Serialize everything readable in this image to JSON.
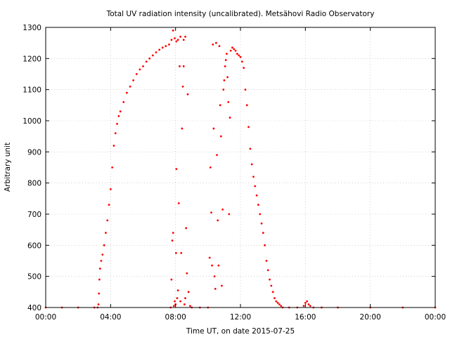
{
  "chart_data": {
    "type": "scatter",
    "title": "Total UV radiation intensity (uncalibrated). Metsähovi Radio Observatory",
    "xlabel": "Time UT, on date 2015-07-25",
    "ylabel": "Arbitrary unit",
    "xlim": [
      0,
      24
    ],
    "ylim": [
      400,
      1300
    ],
    "x_ticks": [
      0,
      4,
      8,
      12,
      16,
      20,
      24
    ],
    "x_tick_labels": [
      "00:00",
      "04:00",
      "08:00",
      "12:00",
      "16:00",
      "20:00",
      "00:00"
    ],
    "y_ticks": [
      400,
      500,
      600,
      700,
      800,
      900,
      1000,
      1100,
      1200,
      1300
    ],
    "y_tick_labels": [
      "400",
      "500",
      "600",
      "700",
      "800",
      "900",
      "1000",
      "1100",
      "1200",
      "1300"
    ],
    "grid": true,
    "marker_color": "#ff0000",
    "series": [
      {
        "points": [
          [
            0.0,
            400
          ],
          [
            1.0,
            400
          ],
          [
            2.0,
            400
          ],
          [
            3.0,
            400
          ],
          [
            3.2,
            400
          ],
          [
            3.25,
            410
          ],
          [
            3.28,
            445
          ],
          [
            3.31,
            490
          ],
          [
            3.35,
            525
          ],
          [
            3.42,
            550
          ],
          [
            3.5,
            570
          ],
          [
            3.6,
            600
          ],
          [
            3.7,
            640
          ],
          [
            3.8,
            680
          ],
          [
            3.9,
            730
          ],
          [
            4.0,
            780
          ],
          [
            4.1,
            850
          ],
          [
            4.2,
            920
          ],
          [
            4.3,
            960
          ],
          [
            4.4,
            990
          ],
          [
            4.5,
            1015
          ],
          [
            4.6,
            1030
          ],
          [
            4.8,
            1060
          ],
          [
            5.0,
            1090
          ],
          [
            5.2,
            1110
          ],
          [
            5.4,
            1130
          ],
          [
            5.6,
            1150
          ],
          [
            5.8,
            1165
          ],
          [
            6.0,
            1175
          ],
          [
            6.2,
            1190
          ],
          [
            6.4,
            1200
          ],
          [
            6.6,
            1210
          ],
          [
            6.8,
            1220
          ],
          [
            7.0,
            1228
          ],
          [
            7.2,
            1235
          ],
          [
            7.4,
            1240
          ],
          [
            7.6,
            1245
          ],
          [
            7.75,
            1260
          ],
          [
            7.85,
            1290
          ],
          [
            7.95,
            1265
          ],
          [
            8.05,
            1255
          ],
          [
            8.15,
            1260
          ],
          [
            8.3,
            1270
          ],
          [
            8.5,
            1260
          ],
          [
            8.6,
            1270
          ],
          [
            7.7,
            400
          ],
          [
            7.75,
            490
          ],
          [
            7.8,
            615
          ],
          [
            7.85,
            640
          ],
          [
            7.9,
            405
          ],
          [
            7.95,
            420
          ],
          [
            8.0,
            410
          ],
          [
            8.03,
            575
          ],
          [
            8.05,
            845
          ],
          [
            8.1,
            430
          ],
          [
            8.15,
            455
          ],
          [
            8.2,
            735
          ],
          [
            8.25,
            1175
          ],
          [
            8.3,
            420
          ],
          [
            8.35,
            575
          ],
          [
            8.4,
            975
          ],
          [
            8.45,
            1110
          ],
          [
            8.5,
            1175
          ],
          [
            8.55,
            410
          ],
          [
            8.6,
            430
          ],
          [
            8.65,
            655
          ],
          [
            8.7,
            510
          ],
          [
            8.75,
            1085
          ],
          [
            8.8,
            450
          ],
          [
            8.9,
            405
          ],
          [
            9.0,
            400
          ],
          [
            9.5,
            400
          ],
          [
            10.0,
            400
          ],
          [
            10.1,
            560
          ],
          [
            10.15,
            850
          ],
          [
            10.2,
            705
          ],
          [
            10.25,
            535
          ],
          [
            10.3,
            1245
          ],
          [
            10.35,
            975
          ],
          [
            10.4,
            500
          ],
          [
            10.45,
            460
          ],
          [
            10.5,
            1250
          ],
          [
            10.55,
            890
          ],
          [
            10.6,
            680
          ],
          [
            10.65,
            535
          ],
          [
            10.7,
            1240
          ],
          [
            10.75,
            1050
          ],
          [
            10.8,
            950
          ],
          [
            10.85,
            470
          ],
          [
            10.9,
            715
          ],
          [
            10.95,
            1100
          ],
          [
            11.0,
            1130
          ],
          [
            11.05,
            1175
          ],
          [
            11.1,
            1195
          ],
          [
            11.15,
            1215
          ],
          [
            11.2,
            1140
          ],
          [
            11.25,
            1060
          ],
          [
            11.3,
            700
          ],
          [
            11.35,
            1010
          ],
          [
            11.4,
            1225
          ],
          [
            11.5,
            1235
          ],
          [
            11.6,
            1230
          ],
          [
            11.7,
            1225
          ],
          [
            11.8,
            1215
          ],
          [
            11.9,
            1210
          ],
          [
            12.0,
            1205
          ],
          [
            12.1,
            1190
          ],
          [
            12.2,
            1170
          ],
          [
            12.3,
            1100
          ],
          [
            12.4,
            1050
          ],
          [
            12.5,
            980
          ],
          [
            12.6,
            910
          ],
          [
            12.7,
            860
          ],
          [
            12.8,
            820
          ],
          [
            12.9,
            790
          ],
          [
            13.0,
            760
          ],
          [
            13.1,
            730
          ],
          [
            13.2,
            700
          ],
          [
            13.3,
            670
          ],
          [
            13.4,
            640
          ],
          [
            13.5,
            600
          ],
          [
            13.6,
            550
          ],
          [
            13.7,
            520
          ],
          [
            13.8,
            490
          ],
          [
            13.9,
            470
          ],
          [
            14.0,
            450
          ],
          [
            14.1,
            430
          ],
          [
            14.2,
            420
          ],
          [
            14.3,
            415
          ],
          [
            14.4,
            410
          ],
          [
            14.5,
            405
          ],
          [
            14.6,
            400
          ],
          [
            15.0,
            400
          ],
          [
            15.5,
            400
          ],
          [
            15.9,
            405
          ],
          [
            16.0,
            415
          ],
          [
            16.1,
            420
          ],
          [
            16.2,
            410
          ],
          [
            16.3,
            405
          ],
          [
            16.5,
            400
          ],
          [
            17.0,
            400
          ],
          [
            18.0,
            400
          ],
          [
            20.0,
            400
          ],
          [
            22.0,
            400
          ],
          [
            24.0,
            400
          ]
        ]
      }
    ]
  }
}
